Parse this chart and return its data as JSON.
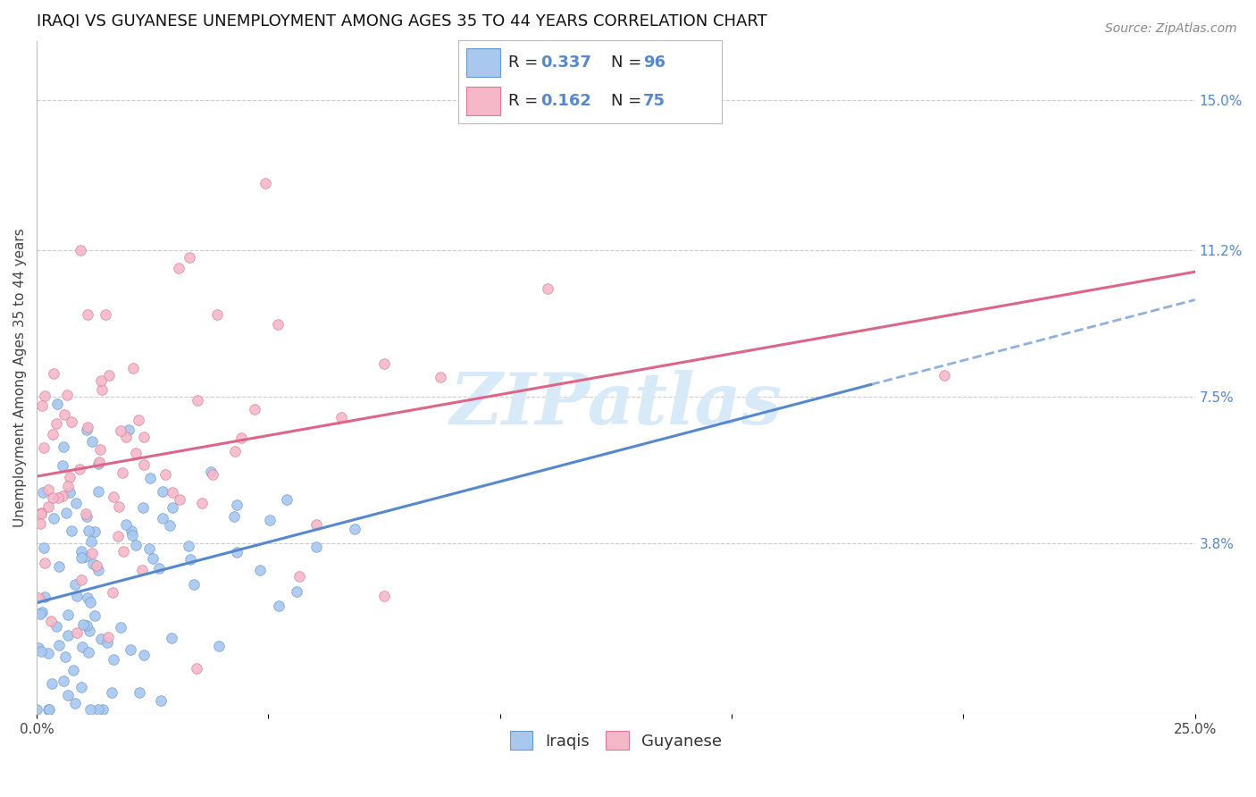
{
  "title": "IRAQI VS GUYANESE UNEMPLOYMENT AMONG AGES 35 TO 44 YEARS CORRELATION CHART",
  "source": "Source: ZipAtlas.com",
  "ylabel": "Unemployment Among Ages 35 to 44 years",
  "xlim": [
    0.0,
    0.25
  ],
  "ylim": [
    -0.005,
    0.165
  ],
  "xticks": [
    0.0,
    0.05,
    0.1,
    0.15,
    0.2,
    0.25
  ],
  "xticklabels": [
    "0.0%",
    "",
    "",
    "",
    "",
    "25.0%"
  ],
  "ytick_labels_right": [
    "3.8%",
    "7.5%",
    "11.2%",
    "15.0%"
  ],
  "ytick_values_right": [
    0.038,
    0.075,
    0.112,
    0.15
  ],
  "iraqis_color": "#a8c8f0",
  "guyanese_color": "#f4b8c8",
  "iraqis_edge_color": "#6699cc",
  "guyanese_edge_color": "#dd7799",
  "iraqis_line_color": "#5588cc",
  "guyanese_line_color": "#dd6688",
  "iraqis_R": 0.337,
  "iraqis_N": 96,
  "guyanese_R": 0.162,
  "guyanese_N": 75,
  "right_tick_color": "#5588cc",
  "watermark_color": "#d8eaf8",
  "background_color": "#ffffff",
  "grid_color": "#cccccc",
  "title_fontsize": 13,
  "source_fontsize": 10,
  "ylabel_fontsize": 11,
  "tick_fontsize": 11,
  "legend_fontsize": 13,
  "watermark_fontsize": 58
}
